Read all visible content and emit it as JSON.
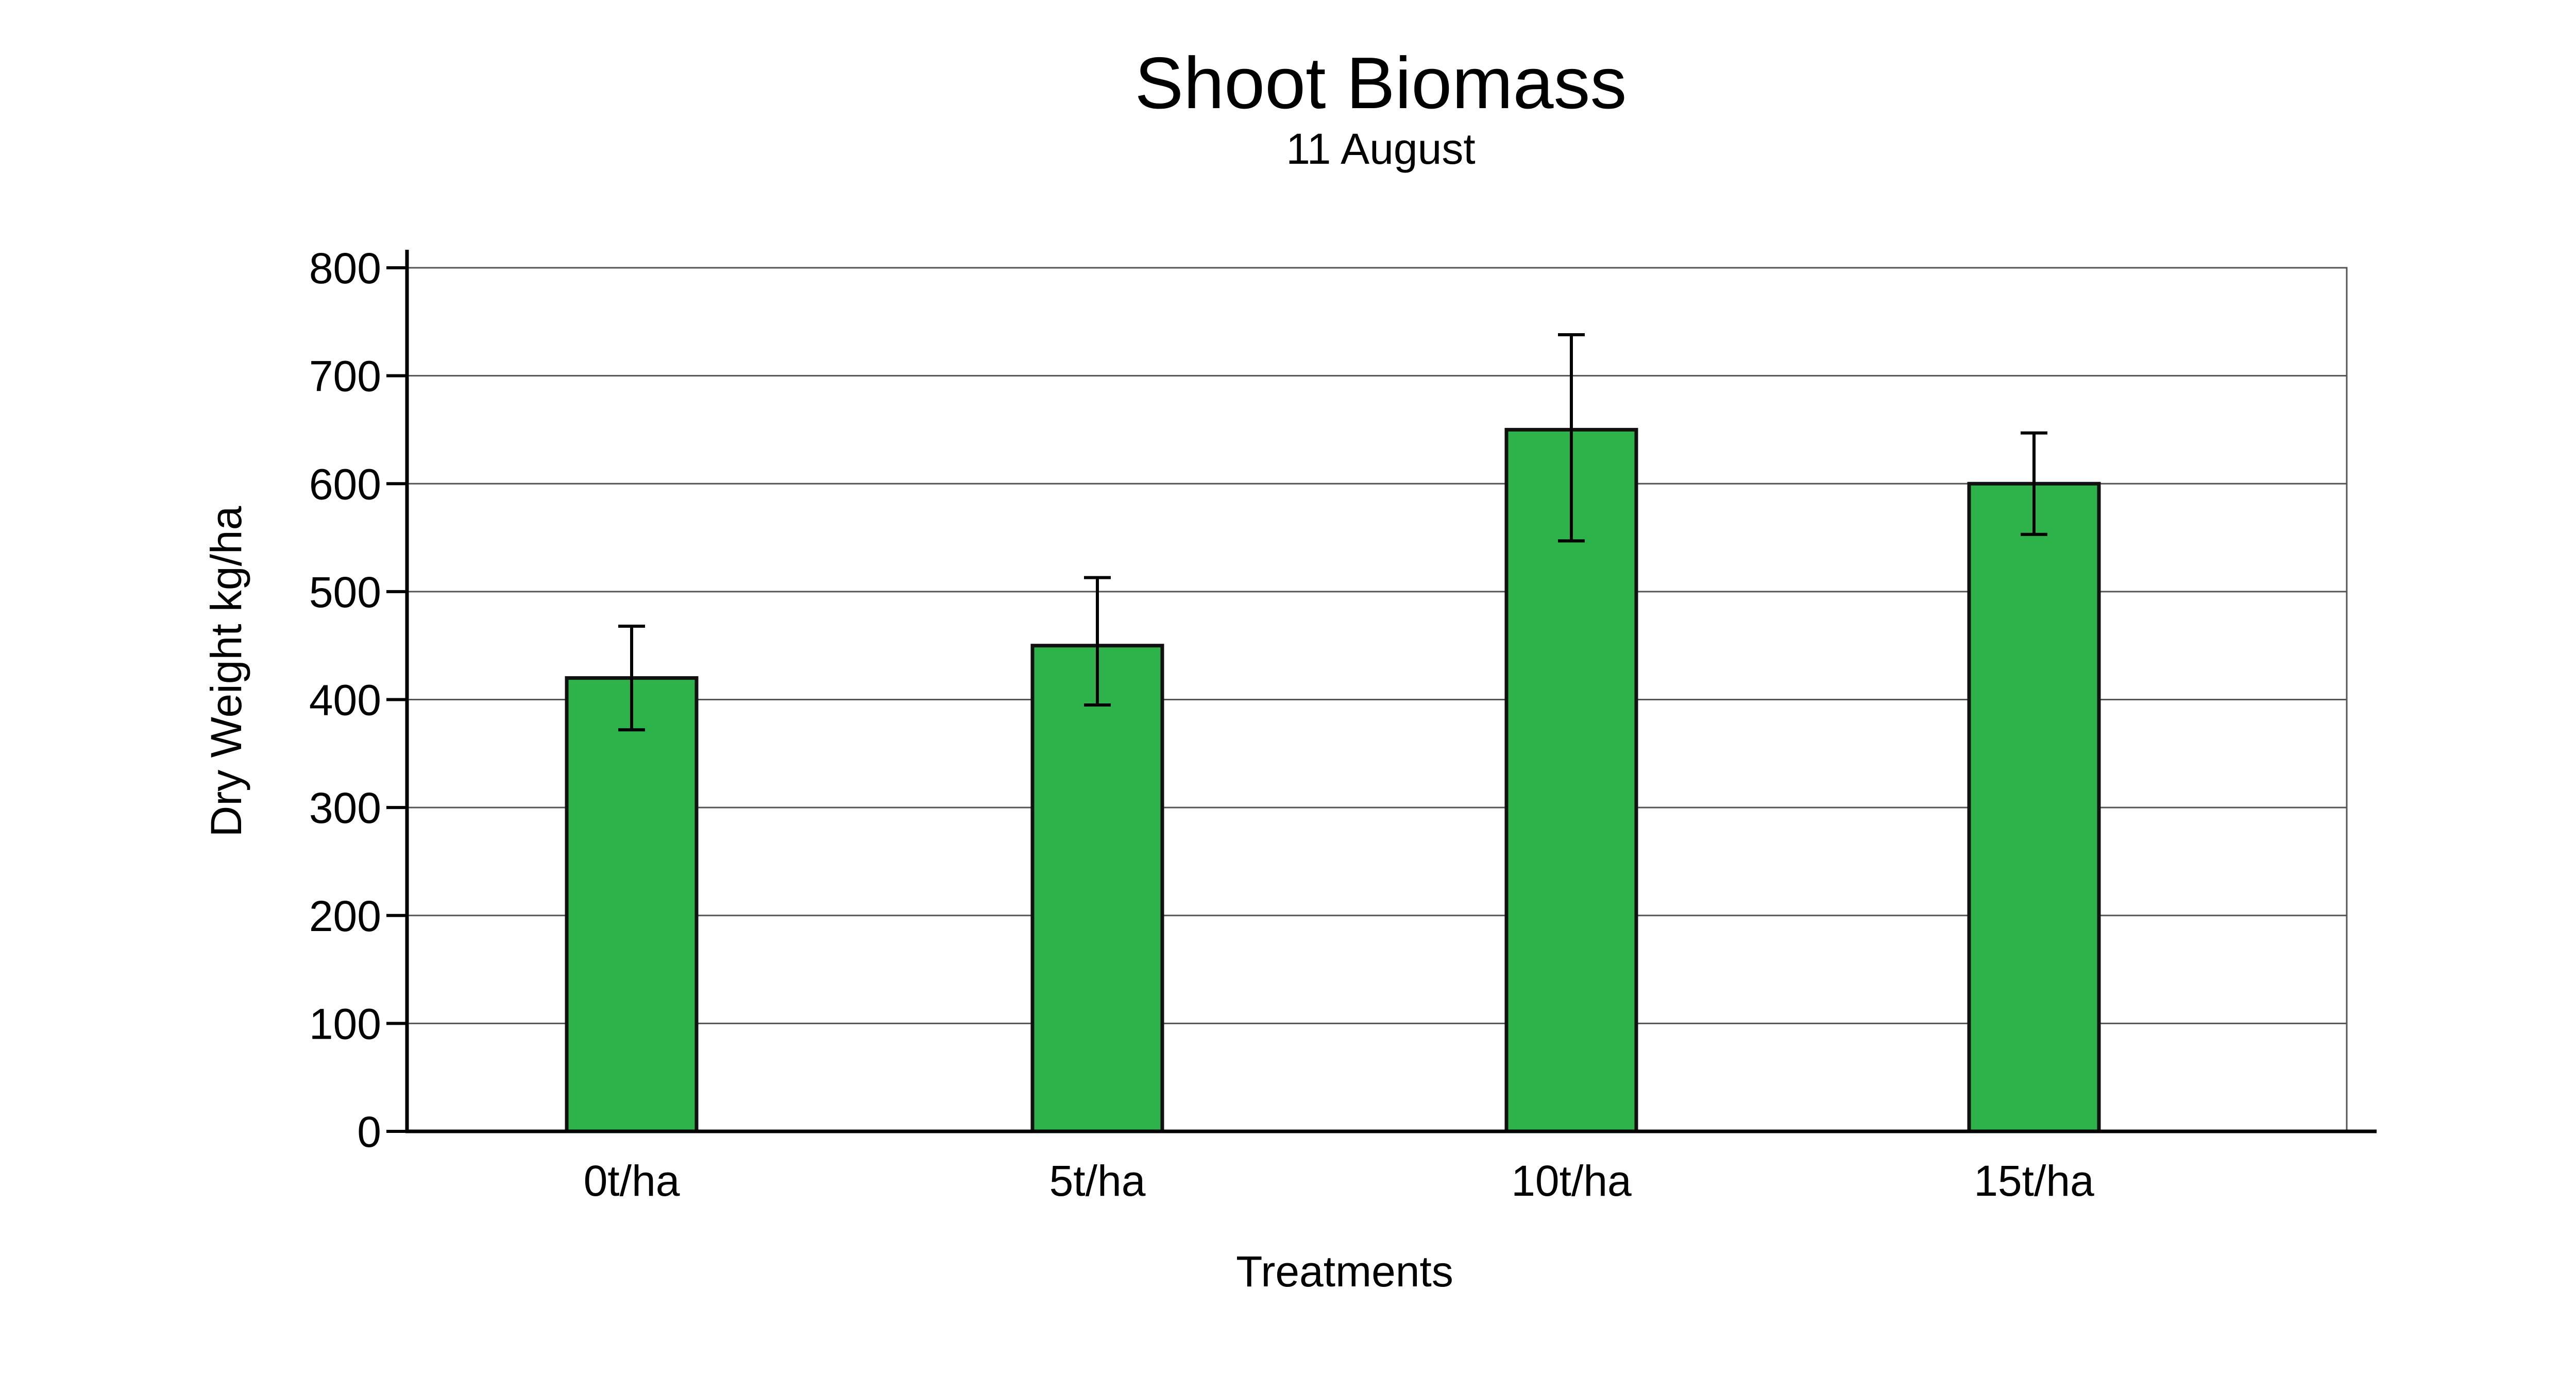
{
  "chart_data": {
    "type": "bar",
    "title": "Shoot Biomass",
    "subtitle": "11 August",
    "xlabel": "Treatments",
    "ylabel": "Dry Weight kg/ha",
    "categories": [
      "0t/ha",
      "5t/ha",
      "10t/ha",
      "15t/ha"
    ],
    "values": [
      420,
      450,
      650,
      600
    ],
    "error_bars": [
      {
        "low": 372,
        "high": 468
      },
      {
        "low": 395,
        "high": 513
      },
      {
        "low": 547,
        "high": 738
      },
      {
        "low": 553,
        "high": 647
      }
    ],
    "ylim": [
      0,
      800
    ],
    "yticks": [
      0,
      100,
      200,
      300,
      400,
      500,
      600,
      700,
      800
    ],
    "grid": true,
    "legend": "none",
    "colors": {
      "bar_fill": "#2db34a",
      "bar_stroke": "#111111",
      "grid": "#555555",
      "axis": "#000000",
      "error_bar": "#000000"
    }
  }
}
